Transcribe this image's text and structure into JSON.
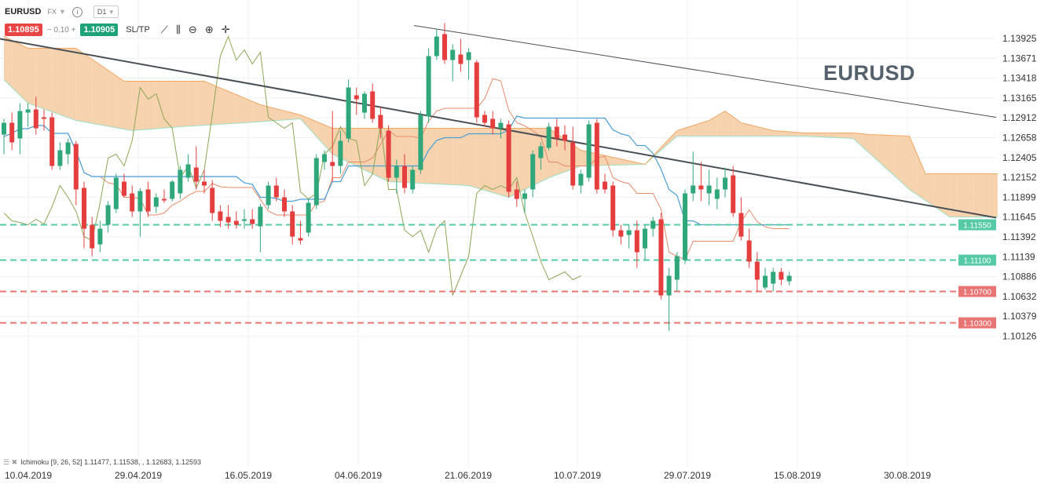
{
  "header": {
    "symbol": "EURUSD",
    "market": "FX",
    "timeframe": "D1",
    "sell_price": "1.10895",
    "spread": "0.10",
    "buy_price": "1.10905",
    "sltp_label": "SL/TP",
    "tools": [
      "trendline-icon",
      "candles-icon",
      "zoom-out-icon",
      "zoom-in-icon",
      "crosshair-icon"
    ]
  },
  "watermark": "EURUSD",
  "indicator_label": "Ichimoku [9, 26, 52] 1.11477, 1.11538, , 1.12683, 1.12593",
  "levels": [
    {
      "price": 1.1155,
      "label": "1.11550",
      "color": "#56c9a6"
    },
    {
      "price": 1.111,
      "label": "1.11100",
      "color": "#56c9a6"
    },
    {
      "price": 1.107,
      "label": "1.10700",
      "color": "#e87474"
    },
    {
      "price": 1.103,
      "label": "1.10300",
      "color": "#e87474"
    }
  ],
  "colors": {
    "bull": "#2fa77a",
    "bear": "#e53e3e",
    "kumo_bear": "#f6cda6",
    "kumo_bull": "#c9f2f2",
    "trendline": "#4a5056",
    "tenkan": "#e88a6a",
    "kijun": "#4a9ed6",
    "chikou": "#8da656"
  },
  "chart_data": {
    "type": "candlestick",
    "title": "EURUSD",
    "timeframe": "D1",
    "y_ticks": [
      "1.13925",
      "1.13671",
      "1.13418",
      "1.13165",
      "1.12912",
      "1.12658",
      "1.12405",
      "1.12152",
      "1.11899",
      "1.11645",
      "1.11392",
      "1.11139",
      "1.10886",
      "1.10632",
      "1.10379",
      "1.10126"
    ],
    "x_ticks": [
      "10.04.2019",
      "29.04.2019",
      "16.05.2019",
      "04.06.2019",
      "21.06.2019",
      "10.07.2019",
      "29.07.2019",
      "15.08.2019",
      "30.08.2019"
    ],
    "ylim": [
      1.101,
      1.141
    ],
    "candles": [
      [
        1.127,
        1.129,
        1.1245,
        1.1285
      ],
      [
        1.1285,
        1.1298,
        1.125,
        1.126
      ],
      [
        1.1265,
        1.131,
        1.1245,
        1.13
      ],
      [
        1.1298,
        1.131,
        1.128,
        1.1302
      ],
      [
        1.1302,
        1.1318,
        1.127,
        1.1278
      ],
      [
        1.1292,
        1.1302,
        1.1275,
        1.129
      ],
      [
        1.1292,
        1.1298,
        1.1225,
        1.123
      ],
      [
        1.123,
        1.126,
        1.1225,
        1.125
      ],
      [
        1.1245,
        1.1265,
        1.1232,
        1.126
      ],
      [
        1.1258,
        1.1262,
        1.118,
        1.12
      ],
      [
        1.1202,
        1.121,
        1.1125,
        1.115
      ],
      [
        1.1155,
        1.1165,
        1.1115,
        1.1125
      ],
      [
        1.113,
        1.116,
        1.112,
        1.115
      ],
      [
        1.1155,
        1.1185,
        1.1145,
        1.118
      ],
      [
        1.1175,
        1.122,
        1.117,
        1.1215
      ],
      [
        1.121,
        1.122,
        1.119,
        1.1192
      ],
      [
        1.1195,
        1.1205,
        1.1165,
        1.1172
      ],
      [
        1.1172,
        1.1202,
        1.114,
        1.1198
      ],
      [
        1.12,
        1.121,
        1.1165,
        1.1172
      ],
      [
        1.1178,
        1.1195,
        1.117,
        1.119
      ],
      [
        1.1188,
        1.12,
        1.1183,
        1.1186
      ],
      [
        1.1188,
        1.1212,
        1.1185,
        1.121
      ],
      [
        1.1195,
        1.123,
        1.1188,
        1.1225
      ],
      [
        1.1215,
        1.1245,
        1.121,
        1.1232
      ],
      [
        1.1228,
        1.1255,
        1.12,
        1.121
      ],
      [
        1.121,
        1.1225,
        1.1195,
        1.1205
      ],
      [
        1.1202,
        1.1212,
        1.116,
        1.117
      ],
      [
        1.1172,
        1.118,
        1.1152,
        1.116
      ],
      [
        1.1165,
        1.118,
        1.115,
        1.1158
      ],
      [
        1.116,
        1.1172,
        1.115,
        1.1155
      ],
      [
        1.116,
        1.1175,
        1.115,
        1.1162
      ],
      [
        1.1162,
        1.1175,
        1.115,
        1.1156
      ],
      [
        1.1153,
        1.1182,
        1.112,
        1.1178
      ],
      [
        1.118,
        1.121,
        1.1175,
        1.1205
      ],
      [
        1.1205,
        1.1215,
        1.1185,
        1.119
      ],
      [
        1.119,
        1.12,
        1.1165,
        1.1172
      ],
      [
        1.1172,
        1.118,
        1.113,
        1.114
      ],
      [
        1.1138,
        1.116,
        1.113,
        1.1135
      ],
      [
        1.1145,
        1.1188,
        1.114,
        1.1183
      ],
      [
        1.118,
        1.1245,
        1.1175,
        1.124
      ],
      [
        1.1235,
        1.125,
        1.1225,
        1.1245
      ],
      [
        1.1235,
        1.13,
        1.121,
        1.123
      ],
      [
        1.123,
        1.1275,
        1.122,
        1.1262
      ],
      [
        1.1265,
        1.134,
        1.126,
        1.133
      ],
      [
        1.132,
        1.133,
        1.1295,
        1.1315
      ],
      [
        1.1298,
        1.1325,
        1.129,
        1.1322
      ],
      [
        1.1325,
        1.1335,
        1.1285,
        1.129
      ],
      [
        1.1295,
        1.1305,
        1.1265,
        1.1278
      ],
      [
        1.1275,
        1.1282,
        1.121,
        1.1215
      ],
      [
        1.1215,
        1.1238,
        1.1195,
        1.123
      ],
      [
        1.123,
        1.1245,
        1.1195,
        1.1202
      ],
      [
        1.12,
        1.123,
        1.1195,
        1.1225
      ],
      [
        1.1225,
        1.13,
        1.122,
        1.1295
      ],
      [
        1.1293,
        1.138,
        1.1285,
        1.137
      ],
      [
        1.137,
        1.1405,
        1.1365,
        1.1395
      ],
      [
        1.1398,
        1.1412,
        1.136,
        1.1365
      ],
      [
        1.1365,
        1.1385,
        1.1338,
        1.1378
      ],
      [
        1.1372,
        1.1392,
        1.135,
        1.136
      ],
      [
        1.1365,
        1.138,
        1.134,
        1.1375
      ],
      [
        1.1362,
        1.1365,
        1.1285,
        1.1292
      ],
      [
        1.1295,
        1.13,
        1.128,
        1.1285
      ],
      [
        1.129,
        1.13,
        1.127,
        1.1278
      ],
      [
        1.1278,
        1.129,
        1.1265,
        1.1285
      ],
      [
        1.1283,
        1.1288,
        1.119,
        1.1197
      ],
      [
        1.12,
        1.121,
        1.1178,
        1.1188
      ],
      [
        1.1188,
        1.12,
        1.117,
        1.1195
      ],
      [
        1.12,
        1.125,
        1.119,
        1.1245
      ],
      [
        1.124,
        1.126,
        1.1225,
        1.1255
      ],
      [
        1.1253,
        1.1285,
        1.125,
        1.128
      ],
      [
        1.128,
        1.129,
        1.1255,
        1.1265
      ],
      [
        1.127,
        1.1282,
        1.125,
        1.1262
      ],
      [
        1.126,
        1.128,
        1.12,
        1.1205
      ],
      [
        1.1205,
        1.1225,
        1.1195,
        1.122
      ],
      [
        1.1215,
        1.1288,
        1.121,
        1.1283
      ],
      [
        1.1285,
        1.129,
        1.1195,
        1.12
      ],
      [
        1.121,
        1.122,
        1.1195,
        1.12
      ],
      [
        1.1205,
        1.121,
        1.114,
        1.1148
      ],
      [
        1.1148,
        1.1155,
        1.113,
        1.114
      ],
      [
        1.1142,
        1.1155,
        1.1125,
        1.1148
      ],
      [
        1.1148,
        1.116,
        1.11,
        1.112
      ],
      [
        1.1125,
        1.1155,
        1.111,
        1.115
      ],
      [
        1.115,
        1.1165,
        1.114,
        1.116
      ],
      [
        1.1162,
        1.117,
        1.106,
        1.1065
      ],
      [
        1.1065,
        1.11,
        1.102,
        1.109
      ],
      [
        1.1085,
        1.112,
        1.107,
        1.1115
      ],
      [
        1.111,
        1.12,
        1.1105,
        1.1195
      ],
      [
        1.1195,
        1.1248,
        1.1185,
        1.1205
      ],
      [
        1.1205,
        1.1235,
        1.1185,
        1.12
      ],
      [
        1.1195,
        1.1225,
        1.118,
        1.1205
      ],
      [
        1.1188,
        1.1215,
        1.1175,
        1.12
      ],
      [
        1.12,
        1.1228,
        1.119,
        1.1215
      ],
      [
        1.1218,
        1.123,
        1.1165,
        1.117
      ],
      [
        1.117,
        1.119,
        1.1135,
        1.114
      ],
      [
        1.1135,
        1.115,
        1.11,
        1.1108
      ],
      [
        1.1108,
        1.112,
        1.107,
        1.1085
      ],
      [
        1.1075,
        1.11,
        1.1072,
        1.109
      ],
      [
        1.108,
        1.11,
        1.107,
        1.1095
      ],
      [
        1.1095,
        1.11,
        1.1078,
        1.1085
      ],
      [
        1.1083,
        1.1095,
        1.1078,
        1.109
      ]
    ]
  }
}
